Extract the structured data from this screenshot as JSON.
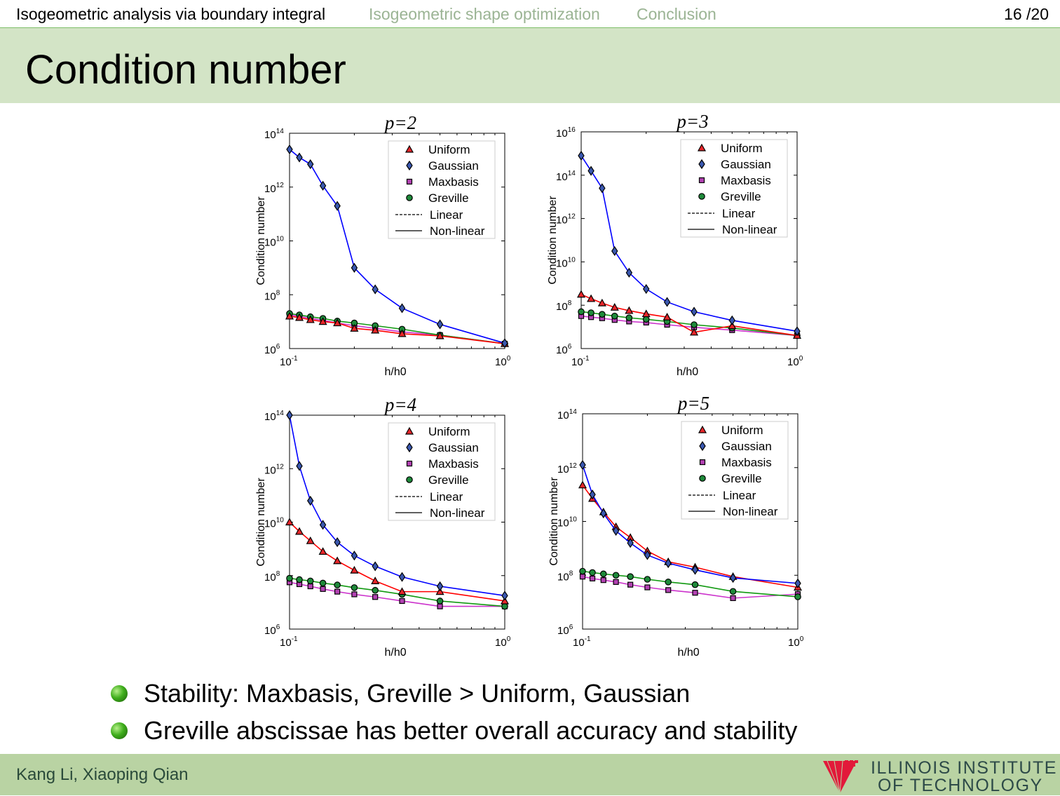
{
  "nav": {
    "sections": [
      "Isogeometric analysis via boundary integral",
      "Isogeometric shape optimization",
      "Conclusion"
    ],
    "page": "16 /20"
  },
  "slide_title": "Condition number",
  "bullets": [
    "Stability: Maxbasis, Greville > Uniform, Gaussian",
    "Greville abscissae has better overall accuracy and stability"
  ],
  "footer": {
    "author": "Kang Li, Xiaoping Qian",
    "logo_line1": "ILLINOIS INSTITUTE",
    "logo_line2": "OF TECHNOLOGY"
  },
  "colors": {
    "uniform": "#ff0000",
    "gaussian": "#0000ff",
    "maxbasis": "#cc33cc",
    "greville": "#119911",
    "uniform_marker": "#e8262a",
    "gaussian_marker": "#3a58b0",
    "maxbasis_marker": "#b342b3",
    "greville_marker": "#1e8a3a"
  },
  "chart_data": [
    {
      "type": "line",
      "title": "p=2",
      "xlabel": "h/h0",
      "ylabel": "Condition number",
      "xscale": "log",
      "yscale": "log",
      "xlim": [
        0.1,
        1
      ],
      "ylim_log10": [
        6,
        14
      ],
      "yticks_log10": [
        6,
        8,
        10,
        12,
        14
      ],
      "xticks_log10": [
        -1,
        0
      ],
      "x": [
        0.1,
        0.1111,
        0.125,
        0.1429,
        0.1667,
        0.2,
        0.25,
        0.3333,
        0.5,
        1.0
      ],
      "legend": [
        "Uniform",
        "Gaussian",
        "Maxbasis",
        "Greville",
        "Linear",
        "Non-linear"
      ],
      "legend_position": "top-right",
      "series": [
        {
          "name": "Uniform",
          "log10_values": [
            7.2,
            7.15,
            7.07,
            7.0,
            6.95,
            6.75,
            6.68,
            6.55,
            6.47,
            6.18
          ]
        },
        {
          "name": "Gaussian",
          "log10_values": [
            13.4,
            13.1,
            12.85,
            12.05,
            11.3,
            9.0,
            8.2,
            7.5,
            6.9,
            6.2
          ]
        },
        {
          "name": "Maxbasis",
          "log10_values": [
            7.25,
            7.2,
            7.12,
            7.05,
            6.95,
            6.85,
            6.75,
            6.62,
            6.5,
            6.18
          ]
        },
        {
          "name": "Greville",
          "log10_values": [
            7.3,
            7.25,
            7.18,
            7.12,
            7.02,
            6.95,
            6.85,
            6.72,
            6.5,
            6.18
          ]
        }
      ]
    },
    {
      "type": "line",
      "title": "p=3",
      "xlabel": "h/h0",
      "ylabel": "Condition number",
      "xscale": "log",
      "yscale": "log",
      "xlim": [
        0.1,
        1
      ],
      "ylim_log10": [
        6,
        16
      ],
      "yticks_log10": [
        6,
        8,
        10,
        12,
        14,
        16
      ],
      "xticks_log10": [
        -1,
        0
      ],
      "x": [
        0.1,
        0.1111,
        0.125,
        0.1429,
        0.1667,
        0.2,
        0.25,
        0.3333,
        0.5,
        1.0
      ],
      "legend": [
        "Uniform",
        "Gaussian",
        "Maxbasis",
        "Greville",
        "Linear",
        "Non-linear"
      ],
      "legend_position": "top-right",
      "series": [
        {
          "name": "Uniform",
          "log10_values": [
            8.5,
            8.3,
            8.1,
            7.9,
            7.75,
            7.6,
            7.45,
            6.75,
            7.05,
            6.6
          ]
        },
        {
          "name": "Gaussian",
          "log10_values": [
            14.9,
            14.2,
            13.4,
            10.5,
            9.5,
            8.75,
            8.15,
            7.7,
            7.3,
            6.8
          ]
        },
        {
          "name": "Maxbasis",
          "log10_values": [
            7.5,
            7.45,
            7.4,
            7.32,
            7.25,
            7.2,
            7.1,
            6.98,
            6.85,
            6.6
          ]
        },
        {
          "name": "Greville",
          "log10_values": [
            7.7,
            7.65,
            7.58,
            7.5,
            7.42,
            7.35,
            7.25,
            7.1,
            6.95,
            6.6
          ]
        }
      ]
    },
    {
      "type": "line",
      "title": "p=4",
      "xlabel": "h/h0",
      "ylabel": "Condition number",
      "xscale": "log",
      "yscale": "log",
      "xlim": [
        0.1,
        1
      ],
      "ylim_log10": [
        6,
        14
      ],
      "yticks_log10": [
        6,
        8,
        10,
        12,
        14
      ],
      "xticks_log10": [
        -1,
        0
      ],
      "x": [
        0.1,
        0.1111,
        0.125,
        0.1429,
        0.1667,
        0.2,
        0.25,
        0.3333,
        0.5,
        1.0
      ],
      "legend": [
        "Uniform",
        "Gaussian",
        "Maxbasis",
        "Greville",
        "Linear",
        "Non-linear"
      ],
      "legend_position": "top-right",
      "series": [
        {
          "name": "Uniform",
          "log10_values": [
            10.0,
            9.65,
            9.3,
            8.9,
            8.55,
            8.2,
            7.8,
            7.4,
            7.4,
            7.05
          ]
        },
        {
          "name": "Gaussian",
          "log10_values": [
            14.0,
            12.1,
            10.8,
            9.9,
            9.25,
            8.75,
            8.35,
            7.95,
            7.6,
            7.25
          ]
        },
        {
          "name": "Maxbasis",
          "log10_values": [
            7.75,
            7.68,
            7.6,
            7.5,
            7.4,
            7.3,
            7.2,
            7.05,
            6.85,
            6.85
          ]
        },
        {
          "name": "Greville",
          "log10_values": [
            7.9,
            7.85,
            7.8,
            7.72,
            7.65,
            7.55,
            7.45,
            7.3,
            7.05,
            6.85
          ]
        }
      ]
    },
    {
      "type": "line",
      "title": "p=5",
      "xlabel": "h/h0",
      "ylabel": "Condition number",
      "xscale": "log",
      "yscale": "log",
      "xlim": [
        0.1,
        1
      ],
      "ylim_log10": [
        6,
        14
      ],
      "yticks_log10": [
        6,
        8,
        10,
        12,
        14
      ],
      "xticks_log10": [
        -1,
        0
      ],
      "x": [
        0.1,
        0.1111,
        0.125,
        0.1429,
        0.1667,
        0.2,
        0.25,
        0.3333,
        0.5,
        1.0
      ],
      "legend": [
        "Uniform",
        "Gaussian",
        "Maxbasis",
        "Greville",
        "Linear",
        "Non-linear"
      ],
      "legend_position": "top-right",
      "series": [
        {
          "name": "Uniform",
          "log10_values": [
            11.35,
            10.85,
            10.35,
            9.8,
            9.4,
            8.9,
            8.5,
            8.3,
            7.95,
            7.55
          ]
        },
        {
          "name": "Gaussian",
          "log10_values": [
            12.1,
            11.0,
            10.3,
            9.65,
            9.2,
            8.75,
            8.45,
            8.2,
            7.9,
            7.7
          ]
        },
        {
          "name": "Maxbasis",
          "log10_values": [
            7.95,
            7.88,
            7.82,
            7.75,
            7.65,
            7.55,
            7.45,
            7.35,
            7.15,
            7.3
          ]
        },
        {
          "name": "Greville",
          "log10_values": [
            8.15,
            8.1,
            8.05,
            8.0,
            7.95,
            7.85,
            7.75,
            7.65,
            7.4,
            7.2
          ]
        }
      ]
    }
  ]
}
